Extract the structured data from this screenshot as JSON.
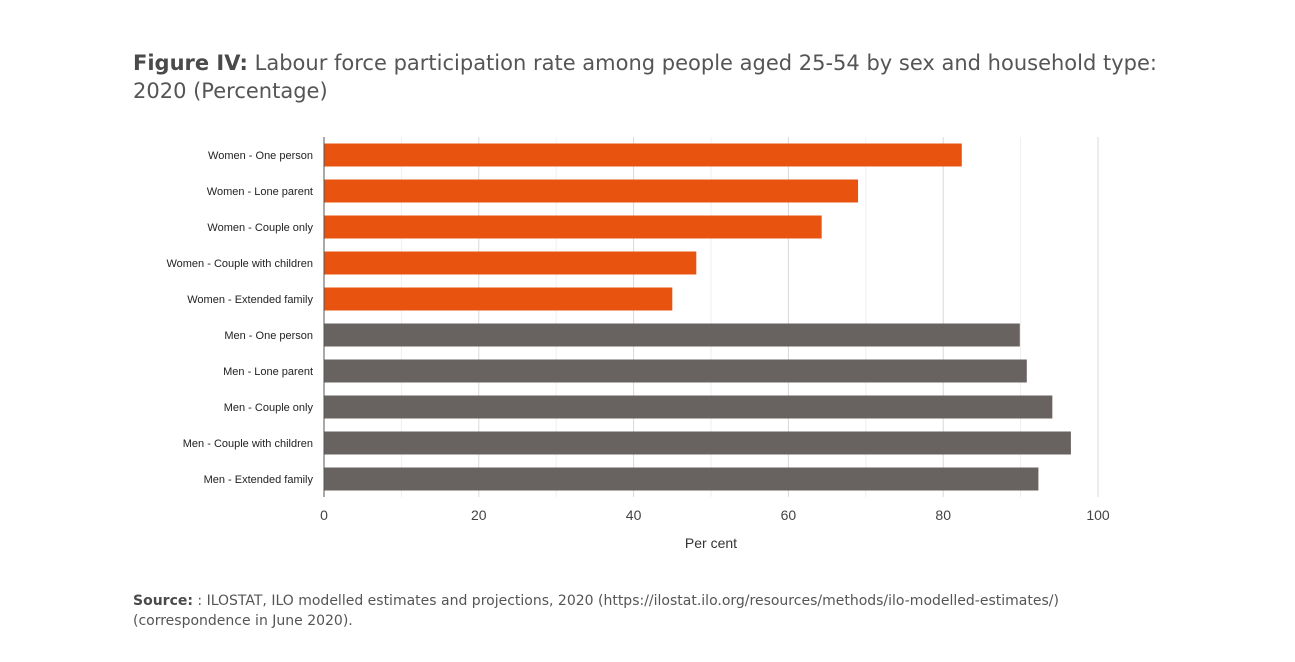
{
  "figure": {
    "label": "Figure IV:",
    "title": "Labour force participation rate among people aged 25-54 by sex and household type: 2020 (Percentage)"
  },
  "source": {
    "label": "Source:",
    "text": ": ILOSTAT, ILO modelled estimates and projections, 2020 (https://ilostat.ilo.org/resources/methods/ilo-modelled-estimates/) (correspondence in June 2020)."
  },
  "colors": {
    "women": "#e8540f",
    "men": "#686361",
    "grid": "#d9d9d9",
    "axis": "#555555"
  },
  "chart_data": {
    "type": "bar",
    "orientation": "horizontal",
    "xlabel": "Per cent",
    "ylabel": "",
    "xlim": [
      0,
      100
    ],
    "xticks": [
      0,
      20,
      40,
      60,
      80,
      100
    ],
    "grid": true,
    "legend": "none",
    "categories": [
      "Women - One person",
      "Women - Lone parent",
      "Women - Couple only",
      "Women - Couple with children",
      "Women - Extended family",
      "Men - One person",
      "Men - Lone parent",
      "Men - Couple only",
      "Men - Couple with children",
      "Men - Extended family"
    ],
    "values": [
      82.4,
      69.0,
      64.3,
      48.1,
      45.0,
      89.9,
      90.8,
      94.1,
      96.5,
      92.3
    ],
    "groups": [
      "women",
      "women",
      "women",
      "women",
      "women",
      "men",
      "men",
      "men",
      "men",
      "men"
    ]
  }
}
